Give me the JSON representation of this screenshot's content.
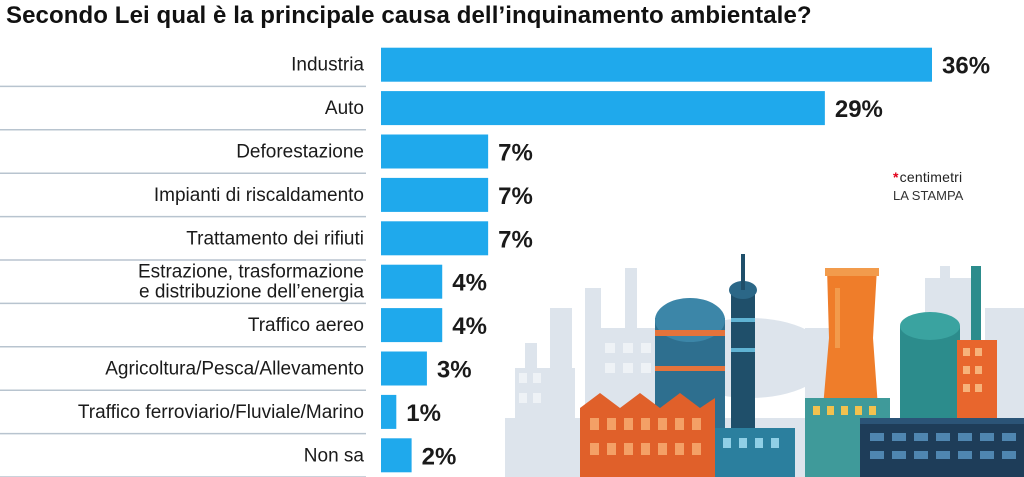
{
  "title": "Secondo Lei qual è la principale causa dell’inquinamento ambientale?",
  "brand": {
    "mark": "*",
    "name": "centimetri",
    "publisher": "LA STAMPA"
  },
  "chart_data": {
    "type": "bar",
    "orientation": "horizontal",
    "title": "Secondo Lei qual è la principale causa dell’inquinamento ambientale?",
    "categories": [
      [
        "Industria"
      ],
      [
        "Auto"
      ],
      [
        "Deforestazione"
      ],
      [
        "Impianti di riscaldamento"
      ],
      [
        "Trattamento dei rifiuti"
      ],
      [
        "Estrazione, trasformazione",
        "e distribuzione dell’energia"
      ],
      [
        "Traffico aereo"
      ],
      [
        "Agricoltura/Pesca/Allevamento"
      ],
      [
        "Traffico ferroviario/Fluviale/Marino"
      ],
      [
        "Non sa"
      ]
    ],
    "values": [
      36,
      29,
      7,
      7,
      7,
      4,
      4,
      3,
      1,
      2
    ],
    "value_labels": [
      "36%",
      "29%",
      "7%",
      "7%",
      "7%",
      "4%",
      "4%",
      "3%",
      "1%",
      "2%"
    ],
    "unit": "%",
    "xlim": [
      0,
      36
    ],
    "bar_color": "#1fa9ec",
    "divider_color": "#b8c4cf",
    "grid": false,
    "legend": "none"
  }
}
